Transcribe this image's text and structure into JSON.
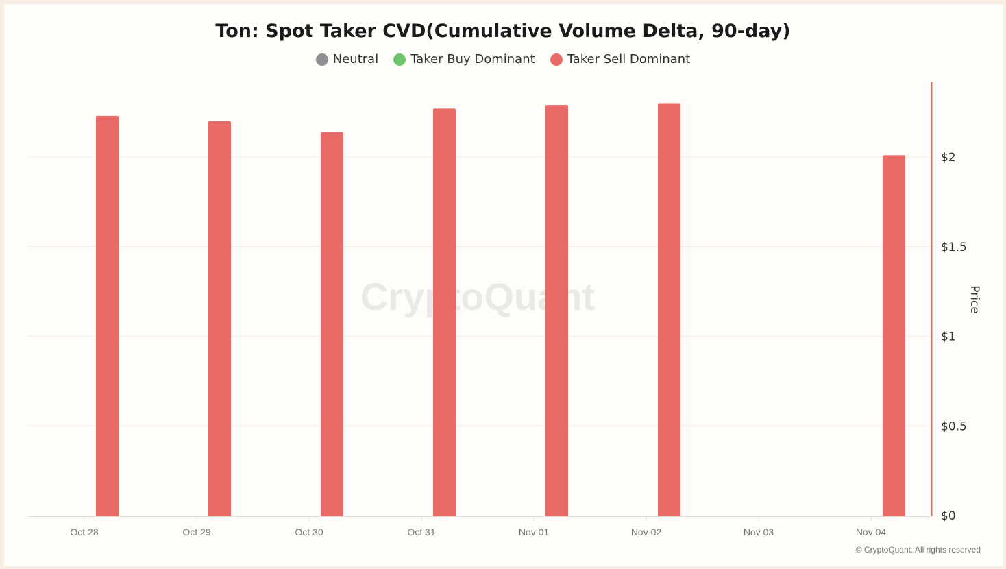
{
  "chart_data": {
    "type": "bar",
    "title": "Ton: Spot Taker CVD(Cumulative Volume Delta, 90-day)",
    "legend": [
      {
        "name": "Neutral",
        "color": "#8e8e93"
      },
      {
        "name": "Taker Buy Dominant",
        "color": "#6cc46a"
      },
      {
        "name": "Taker Sell Dominant",
        "color": "#e76a66"
      }
    ],
    "legend_position": "top",
    "categories": [
      "Oct 28",
      "Oct 29",
      "Oct 30",
      "Oct 31",
      "Nov 01",
      "Nov 02",
      "Nov 03",
      "Nov 04"
    ],
    "series": [
      {
        "name": "Taker Sell Dominant",
        "values": [
          2.23,
          2.2,
          2.14,
          2.27,
          2.29,
          2.3,
          null,
          2.01
        ]
      }
    ],
    "ylabel": "Price",
    "y_axis_position": "right",
    "yticks": [
      "$0",
      "$0.5",
      "$1",
      "$1.5",
      "$2"
    ],
    "ytick_values": [
      0,
      0.5,
      1,
      1.5,
      2
    ],
    "ylim": [
      0,
      2.42
    ],
    "grid": true,
    "bar_color": "#e76a66",
    "axis_color": "#e76a66",
    "watermark": "CryptoQuant"
  },
  "footer": {
    "copyright": "© CryptoQuant. All rights reserved"
  }
}
